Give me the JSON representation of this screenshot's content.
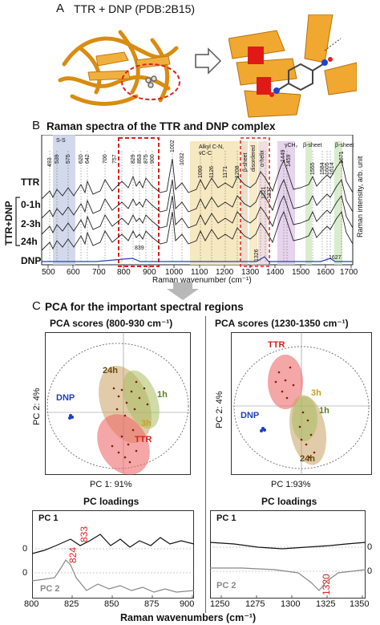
{
  "panel_a": {
    "letter": "A",
    "title": "TTR + DNP (PDB:2B15)"
  },
  "panel_b": {
    "letter": "B",
    "title": "Raman spectra of the TTR and DNP complex",
    "xlabel": "Raman wavenumber (cm⁻¹)",
    "ylabel": "Raman intensity, arb. unit",
    "xticks": [
      "500",
      "600",
      "700",
      "800",
      "900",
      "1000",
      "1100",
      "1200",
      "1300",
      "1400",
      "1500",
      "1600",
      "1700"
    ],
    "row_labels": [
      "TTR",
      "0-1h",
      "2-3h",
      "24h",
      "DNP"
    ],
    "group_label": "TTR+DNP",
    "band_labels": [
      "S-S",
      "Alkyl C-N, νC-C",
      "β-sheet",
      "disordered",
      "α-helix",
      "γCH₂",
      "β-sheet",
      "β-sheet"
    ],
    "peak_labels": [
      "493",
      "539",
      "575",
      "620",
      "642",
      "700",
      "757",
      "829",
      "853",
      "875",
      "900",
      "1002",
      "1032",
      "1090",
      "1126",
      "1171",
      "1208",
      "1321",
      "1337",
      "1449",
      "1459",
      "1555",
      "1584",
      "1605",
      "1614",
      "1671",
      "839",
      "1326",
      "1627"
    ]
  },
  "panel_c": {
    "letter": "C",
    "title": "PCA for the important spectral regions",
    "left": {
      "scores_title": "PCA scores (800-930 cm⁻¹)",
      "pc1_label": "PC 1: 91%",
      "pc2_label": "PC 2: 4%",
      "groups": [
        "DNP",
        "24h",
        "1h",
        "3h",
        "TTR"
      ],
      "loadings_title": "PC loadings",
      "load_pc1": "PC 1",
      "load_pc2": "PC 2",
      "zero": "0",
      "annot1": "833",
      "annot2": "824",
      "xticks": [
        "800",
        "825",
        "850",
        "875",
        "900"
      ]
    },
    "right": {
      "scores_title": "PCA scores (1230-1350 cm⁻¹)",
      "pc1_label": "PC 1:93%",
      "pc2_label": "PC 2: 4%",
      "groups": [
        "TTR",
        "DNP",
        "3h",
        "1h",
        "24h"
      ],
      "loadings_title": "PC loadings",
      "load_pc1": "PC 1",
      "load_pc2": "PC 2",
      "zero": "0",
      "annot1": "1320",
      "xticks": [
        "1250",
        "1275",
        "1300",
        "1325",
        "1350"
      ]
    },
    "xlabel": "Raman wavenumbers (cm⁻¹)"
  },
  "colors": {
    "protein": "#e8a020",
    "highlight_red": "#e02020",
    "ttr_ellipse": "#ef6a6a",
    "green_ellipse": "#a8c060",
    "tan_ellipse": "#c8a060",
    "dnp_blue": "#2040c0",
    "band_blue": "#c8d0e8",
    "band_yellow": "#f4e2b0",
    "band_green": "#d0e8c0",
    "band_purple": "#e0c8e8"
  }
}
